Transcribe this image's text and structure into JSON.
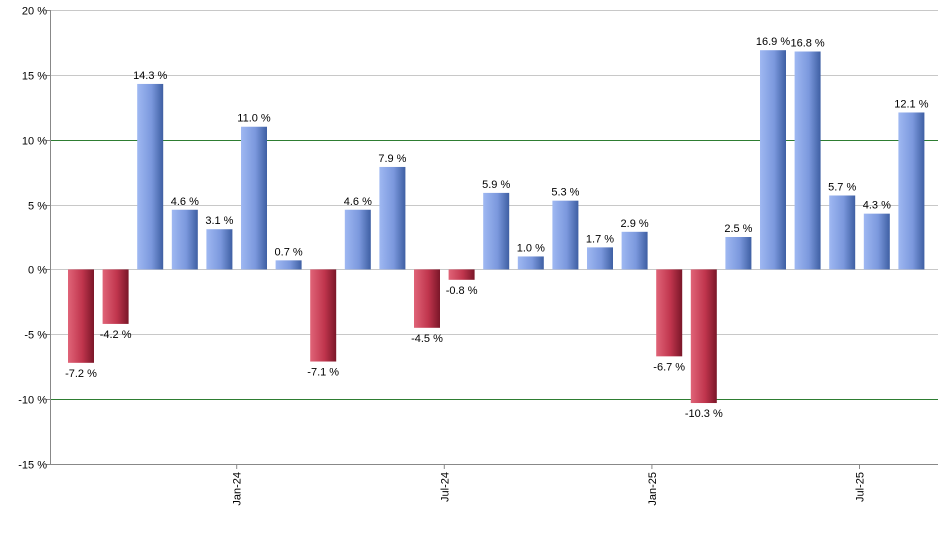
{
  "chart_data": {
    "type": "bar",
    "title": "",
    "xlabel": "",
    "ylabel": "",
    "ylim": [
      -15,
      20
    ],
    "y_ticks": [
      -15,
      -10,
      -5,
      0,
      5,
      10,
      15,
      20
    ],
    "y_tick_labels": [
      "-15 %",
      "-10 %",
      "-5 %",
      "0 %",
      "5 %",
      "10 %",
      "15 %",
      "20 %"
    ],
    "highlight_lines": [
      10,
      -10
    ],
    "grid": true,
    "x_tick_labels": [
      {
        "label": "Jan-24",
        "index": 4.5
      },
      {
        "label": "Jul-24",
        "index": 10.5
      },
      {
        "label": "Jan-25",
        "index": 16.5
      },
      {
        "label": "Jul-25",
        "index": 22.5
      }
    ],
    "values": [
      -7.2,
      -4.2,
      14.3,
      4.6,
      3.1,
      11.0,
      0.7,
      -7.1,
      4.6,
      7.9,
      -4.5,
      -0.8,
      5.9,
      1.0,
      5.3,
      1.7,
      2.9,
      -6.7,
      -10.3,
      2.5,
      16.9,
      16.8,
      5.7,
      4.3,
      12.1
    ],
    "value_labels": [
      "-7.2 %",
      "-4.2 %",
      "14.3 %",
      "4.6 %",
      "3.1 %",
      "11.0 %",
      "0.7 %",
      "-7.1 %",
      "4.6 %",
      "7.9 %",
      "-4.5 %",
      "-0.8 %",
      "5.9 %",
      "1.0 %",
      "5.3 %",
      "1.7 %",
      "2.9 %",
      "-6.7 %",
      "-10.3 %",
      "2.5 %",
      "16.9 %",
      "16.8 %",
      "5.7 %",
      "4.3 %",
      "12.1 %"
    ],
    "colors": {
      "positive": "#7f9ee6",
      "negative": "#c0354d",
      "grid": "#c8c8c8",
      "highlight_line": "#2e7d32",
      "axis": "#888888"
    }
  }
}
